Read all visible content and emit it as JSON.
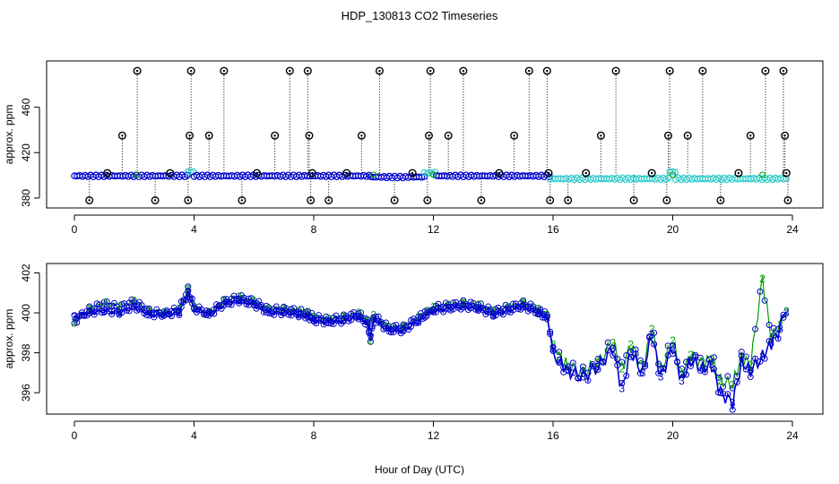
{
  "title": "HDP_130813  CO2 Timeseries",
  "xlabel": "Hour of Day (UTC)",
  "colors": {
    "series1": "#00a000",
    "series2": "#33cccc",
    "series3": "#0000cc",
    "outlier": "#000000",
    "text": "#000000"
  },
  "chart_data": [
    {
      "type": "scatter",
      "ylabel": "approx. ppm",
      "xlim": [
        0,
        24
      ],
      "ylim": [
        376,
        496
      ],
      "x_ticks": [
        "0",
        "4",
        "8",
        "12",
        "16",
        "20",
        "24"
      ],
      "y_ticks": [
        "380",
        "420",
        "460"
      ],
      "series": [
        {
          "marker": "open circle (blue/cyan)",
          "segments": [
            {
              "x0": 0.0,
              "x1": 3.8,
              "y": 399.5
            },
            {
              "x0": 3.8,
              "x1": 4.0,
              "y": 403
            },
            {
              "x0": 4.0,
              "x1": 9.9,
              "y": 399.5
            },
            {
              "x0": 9.9,
              "x1": 11.7,
              "y": 398.5
            },
            {
              "x0": 11.7,
              "x1": 12.1,
              "y": 402
            },
            {
              "x0": 12.1,
              "x1": 15.9,
              "y": 399.5
            },
            {
              "x0": 15.9,
              "x1": 19.9,
              "y": 397
            },
            {
              "x0": 19.9,
              "x1": 20.1,
              "y": 403
            },
            {
              "x0": 20.1,
              "x1": 23.8,
              "y": 397
            }
          ]
        },
        {
          "marker": "outlier circle (black)",
          "outliers": [
            {
              "x": 0.5,
              "y": 378
            },
            {
              "x": 1.1,
              "y": 402
            },
            {
              "x": 1.6,
              "y": 435
            },
            {
              "x": 2.1,
              "y": 492
            },
            {
              "x": 2.7,
              "y": 378
            },
            {
              "x": 3.2,
              "y": 402
            },
            {
              "x": 3.8,
              "y": 378
            },
            {
              "x": 3.85,
              "y": 435
            },
            {
              "x": 3.9,
              "y": 492
            },
            {
              "x": 4.5,
              "y": 435
            },
            {
              "x": 5.0,
              "y": 492
            },
            {
              "x": 5.6,
              "y": 378
            },
            {
              "x": 6.1,
              "y": 402
            },
            {
              "x": 6.7,
              "y": 435
            },
            {
              "x": 7.2,
              "y": 492
            },
            {
              "x": 7.8,
              "y": 492
            },
            {
              "x": 7.85,
              "y": 435
            },
            {
              "x": 7.9,
              "y": 378
            },
            {
              "x": 7.95,
              "y": 402
            },
            {
              "x": 8.5,
              "y": 378
            },
            {
              "x": 9.1,
              "y": 402
            },
            {
              "x": 9.6,
              "y": 435
            },
            {
              "x": 10.2,
              "y": 492
            },
            {
              "x": 10.7,
              "y": 378
            },
            {
              "x": 11.3,
              "y": 402
            },
            {
              "x": 11.8,
              "y": 378
            },
            {
              "x": 11.85,
              "y": 435
            },
            {
              "x": 11.9,
              "y": 492
            },
            {
              "x": 12.5,
              "y": 435
            },
            {
              "x": 13.0,
              "y": 492
            },
            {
              "x": 13.6,
              "y": 378
            },
            {
              "x": 14.2,
              "y": 402
            },
            {
              "x": 14.7,
              "y": 435
            },
            {
              "x": 15.2,
              "y": 492
            },
            {
              "x": 15.8,
              "y": 492
            },
            {
              "x": 15.85,
              "y": 402
            },
            {
              "x": 15.9,
              "y": 378
            },
            {
              "x": 16.5,
              "y": 378
            },
            {
              "x": 17.1,
              "y": 402
            },
            {
              "x": 17.6,
              "y": 435
            },
            {
              "x": 18.1,
              "y": 492
            },
            {
              "x": 18.7,
              "y": 378
            },
            {
              "x": 19.3,
              "y": 402
            },
            {
              "x": 19.8,
              "y": 378
            },
            {
              "x": 19.85,
              "y": 435
            },
            {
              "x": 19.9,
              "y": 492
            },
            {
              "x": 20.5,
              "y": 435
            },
            {
              "x": 21.0,
              "y": 492
            },
            {
              "x": 21.6,
              "y": 378
            },
            {
              "x": 22.2,
              "y": 402
            },
            {
              "x": 22.6,
              "y": 435
            },
            {
              "x": 23.1,
              "y": 492
            },
            {
              "x": 23.7,
              "y": 492
            },
            {
              "x": 23.75,
              "y": 435
            },
            {
              "x": 23.8,
              "y": 402
            },
            {
              "x": 23.85,
              "y": 378
            }
          ]
        }
      ]
    },
    {
      "type": "line",
      "ylabel": "approx. ppm",
      "xlim": [
        0,
        24
      ],
      "ylim": [
        395.2,
        402.2
      ],
      "x_ticks": [
        "0",
        "4",
        "8",
        "12",
        "16",
        "20",
        "24"
      ],
      "y_ticks": [
        "396",
        "398",
        "400",
        "402"
      ],
      "series": [
        {
          "marker": "2",
          "color": "#00a000",
          "x": [
            0.0,
            0.5,
            1.0,
            1.5,
            2.0,
            2.5,
            3.0,
            3.5,
            3.8,
            4.0,
            4.5,
            5.0,
            5.5,
            6.0,
            6.5,
            7.0,
            7.5,
            7.8,
            8.0,
            8.5,
            9.0,
            9.5,
            9.8,
            9.9,
            10.0,
            10.5,
            11.0,
            11.5,
            11.8,
            12.0,
            12.5,
            13.0,
            13.5,
            14.0,
            14.5,
            15.0,
            15.5,
            15.8,
            16.0,
            16.2,
            16.5,
            17.0,
            17.5,
            18.0,
            18.3,
            18.6,
            19.0,
            19.3,
            19.6,
            20.0,
            20.3,
            20.6,
            21.0,
            21.3,
            21.6,
            22.0,
            22.3,
            22.6,
            23.0,
            23.3,
            23.6,
            23.8
          ],
          "values": [
            399.5,
            400.2,
            400.5,
            400.3,
            400.6,
            400.1,
            400.0,
            400.2,
            401.2,
            400.3,
            400.0,
            400.6,
            400.8,
            400.6,
            400.2,
            400.2,
            400.1,
            400.0,
            399.8,
            399.7,
            399.8,
            400.0,
            399.6,
            398.6,
            399.9,
            399.3,
            399.3,
            399.8,
            400.1,
            400.3,
            400.4,
            400.5,
            400.4,
            400.1,
            400.3,
            400.5,
            400.2,
            399.9,
            398.4,
            397.8,
            397.3,
            397.0,
            397.5,
            398.5,
            397.2,
            398.4,
            397.3,
            399.2,
            397.1,
            398.6,
            396.9,
            397.9,
            397.5,
            397.7,
            396.6,
            396.4,
            397.8,
            397.4,
            401.7,
            398.7,
            399.4,
            400.1
          ]
        },
        {
          "marker": "3",
          "color": "#0000cc",
          "x": [
            0.0,
            0.5,
            1.0,
            1.5,
            2.0,
            2.5,
            3.0,
            3.5,
            3.8,
            4.0,
            4.5,
            5.0,
            5.5,
            6.0,
            6.5,
            7.0,
            7.5,
            7.8,
            8.0,
            8.5,
            9.0,
            9.5,
            9.8,
            9.9,
            10.0,
            10.5,
            11.0,
            11.5,
            11.8,
            12.0,
            12.5,
            13.0,
            13.5,
            14.0,
            14.5,
            15.0,
            15.5,
            15.8,
            16.0,
            16.2,
            16.5,
            17.0,
            17.5,
            18.0,
            18.3,
            18.6,
            19.0,
            19.3,
            19.6,
            20.0,
            20.3,
            20.6,
            21.0,
            21.3,
            21.6,
            22.0,
            22.3,
            22.6,
            23.0,
            23.3,
            23.6,
            23.8
          ],
          "values": [
            399.8,
            400.0,
            400.1,
            400.0,
            400.3,
            399.9,
            399.9,
            400.0,
            401.0,
            400.2,
            399.9,
            400.4,
            400.6,
            400.4,
            400.0,
            400.0,
            399.9,
            399.8,
            399.6,
            399.5,
            399.6,
            399.8,
            399.4,
            398.8,
            399.7,
            399.1,
            399.1,
            399.6,
            399.9,
            400.1,
            400.2,
            400.3,
            400.2,
            399.9,
            400.1,
            400.3,
            400.0,
            399.7,
            398.2,
            397.6,
            397.1,
            396.8,
            397.3,
            398.2,
            396.2,
            398.0,
            397.0,
            398.9,
            396.8,
            398.3,
            396.6,
            397.6,
            397.2,
            397.4,
            396.0,
            395.5,
            397.5,
            397.1,
            397.8,
            398.5,
            399.2,
            400.0
          ]
        }
      ]
    }
  ]
}
